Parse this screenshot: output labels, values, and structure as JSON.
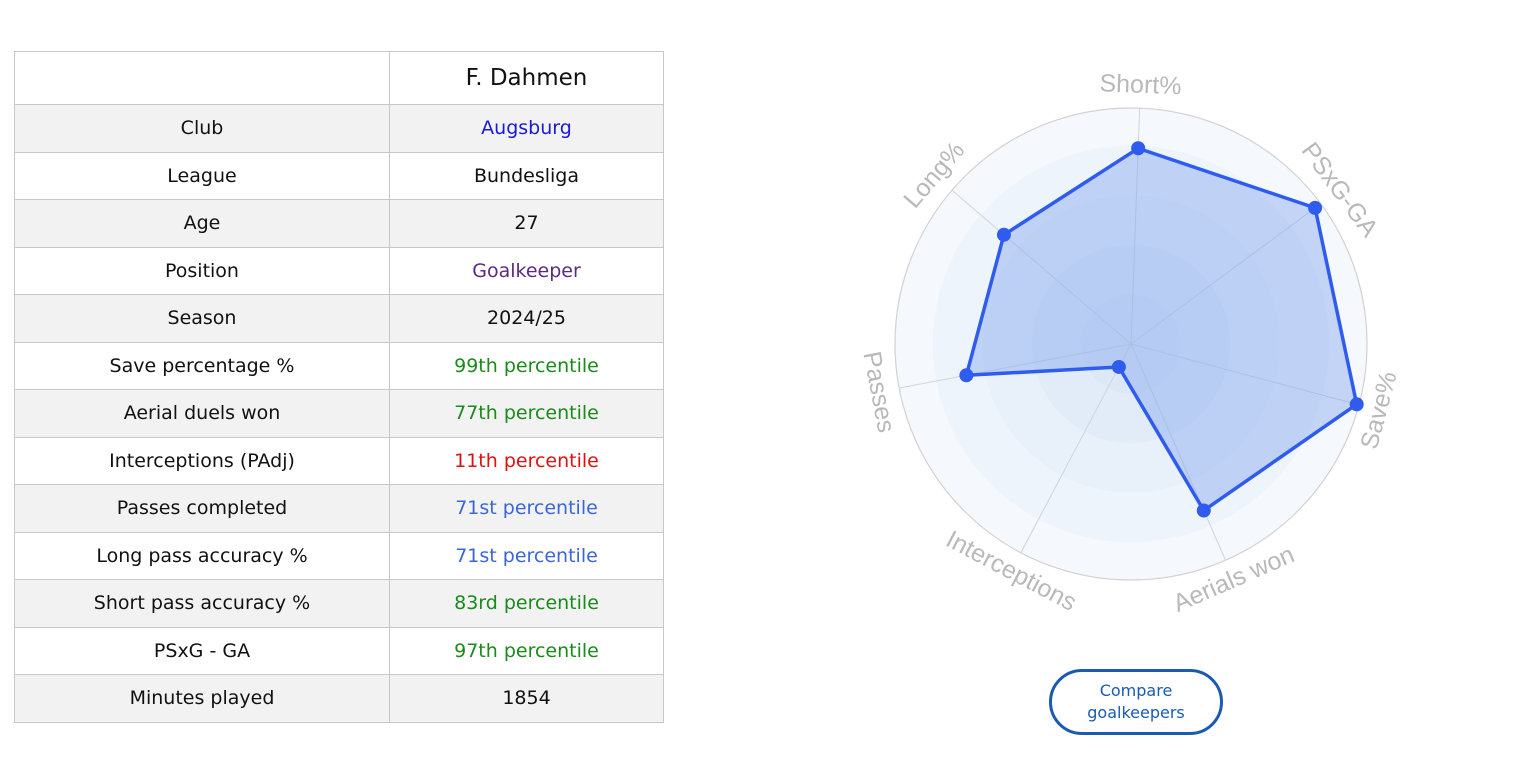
{
  "player": {
    "name": "F. Dahmen",
    "rows": [
      {
        "label": "Club",
        "value": "Augsburg",
        "color": "#1a1ad6"
      },
      {
        "label": "League",
        "value": "Bundesliga",
        "color": "#111111"
      },
      {
        "label": "Age",
        "value": "27",
        "color": "#111111"
      },
      {
        "label": "Position",
        "value": "Goalkeeper",
        "color": "#5b2a86"
      },
      {
        "label": "Season",
        "value": "2024/25",
        "color": "#111111"
      },
      {
        "label": "Save percentage %",
        "value": "99th percentile",
        "color": "#1a8a1a"
      },
      {
        "label": "Aerial duels won",
        "value": "77th percentile",
        "color": "#1a8a1a"
      },
      {
        "label": "Interceptions (PAdj)",
        "value": "11th percentile",
        "color": "#e01010"
      },
      {
        "label": "Passes completed",
        "value": "71st percentile",
        "color": "#3a66d8"
      },
      {
        "label": "Long pass accuracy %",
        "value": "71st percentile",
        "color": "#3a66d8"
      },
      {
        "label": "Short pass accuracy %",
        "value": "83rd percentile",
        "color": "#1a8a1a"
      },
      {
        "label": "PSxG - GA",
        "value": "97th percentile",
        "color": "#1a8a1a"
      },
      {
        "label": "Minutes played",
        "value": "1854",
        "color": "#111111"
      }
    ]
  },
  "chart_data": {
    "type": "radar",
    "axes": [
      "Short%",
      "PSxG-GA",
      "Save%",
      "Aerials won",
      "Interceptions",
      "Passes",
      "Long%"
    ],
    "values": [
      83,
      97,
      99,
      77,
      11,
      71,
      71
    ],
    "range": [
      0,
      100
    ],
    "fill_color": "#7fa3ef",
    "line_color": "#2f5cee"
  },
  "compare_button": {
    "label": "Compare goalkeepers"
  }
}
